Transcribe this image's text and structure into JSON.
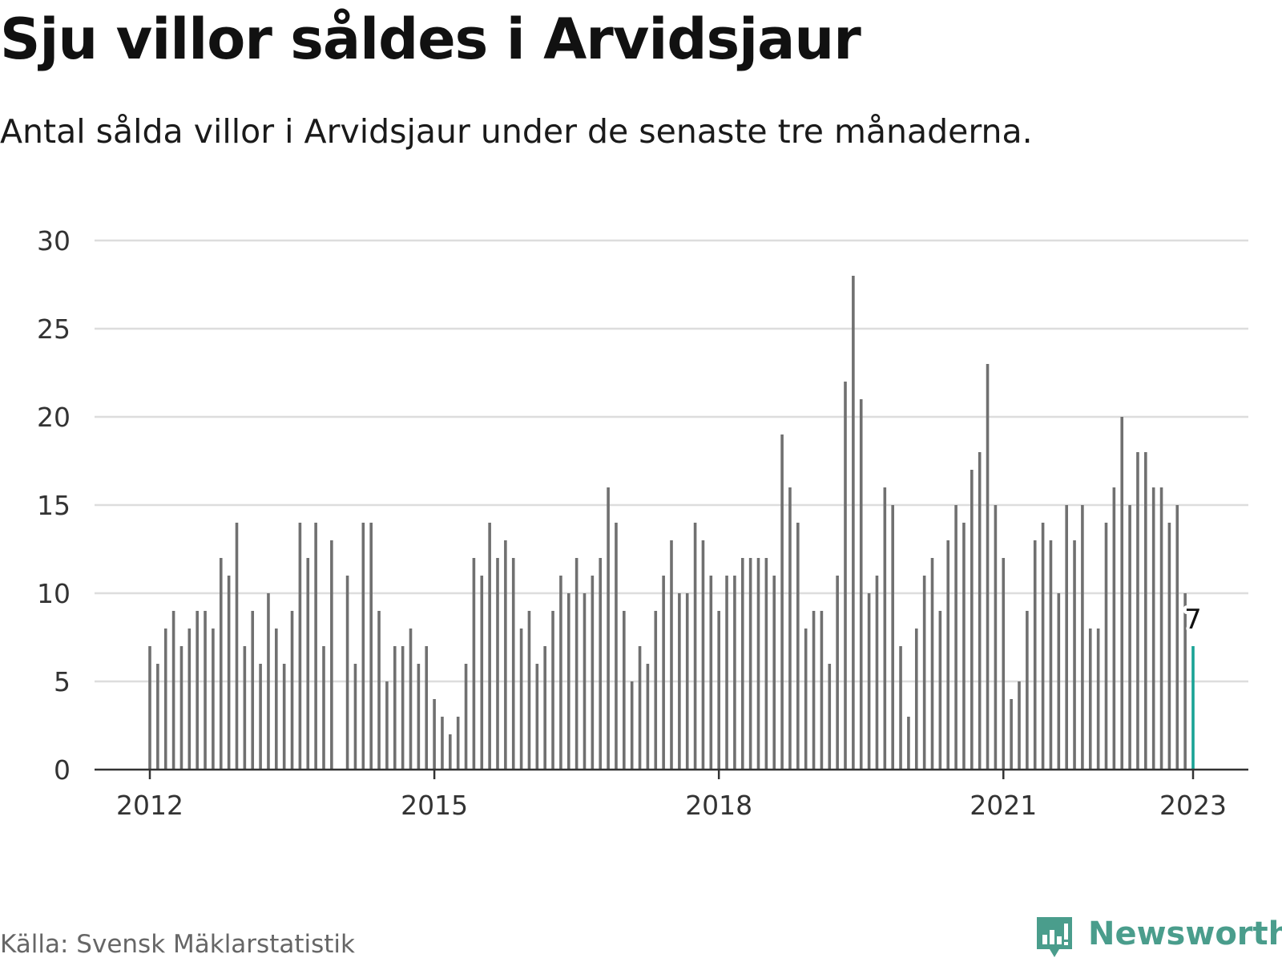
{
  "title": "Sju villor såldes i Arvidsjaur",
  "subtitle": "Antal sålda villor i Arvidsjaur under de senaste tre månaderna.",
  "source": "Källa: Svensk Mäklarstatistik",
  "brand": "Newsworthy",
  "colors": {
    "bar": "#707070",
    "highlight": "#1aa396",
    "grid": "#dddddd",
    "axis": "#333333",
    "brand": "#4a9d8c"
  },
  "chart_data": {
    "type": "bar",
    "title": "Sju villor såldes i Arvidsjaur",
    "xlabel": "",
    "ylabel": "",
    "ylim": [
      0,
      30
    ],
    "yticks": [
      0,
      5,
      10,
      15,
      20,
      25,
      30
    ],
    "grid": true,
    "start": "2012-01",
    "end": "2023-01",
    "x_tick_labels": [
      "2012",
      "2015",
      "2018",
      "2021",
      "2023"
    ],
    "x_tick_months": [
      0,
      36,
      72,
      108,
      132
    ],
    "highlight_label": "7",
    "values": [
      7,
      6,
      8,
      9,
      7,
      8,
      9,
      9,
      8,
      12,
      11,
      14,
      7,
      9,
      6,
      10,
      8,
      6,
      9,
      14,
      12,
      14,
      7,
      13,
      0,
      11,
      6,
      14,
      14,
      9,
      5,
      7,
      7,
      8,
      6,
      7,
      4,
      3,
      2,
      3,
      6,
      12,
      11,
      14,
      12,
      13,
      12,
      8,
      9,
      6,
      7,
      9,
      11,
      10,
      12,
      10,
      11,
      12,
      16,
      14,
      9,
      5,
      7,
      6,
      9,
      11,
      13,
      10,
      10,
      14,
      13,
      11,
      9,
      11,
      11,
      12,
      12,
      12,
      12,
      11,
      19,
      16,
      14,
      8,
      9,
      9,
      6,
      11,
      22,
      28,
      21,
      10,
      11,
      16,
      15,
      7,
      3,
      8,
      11,
      12,
      9,
      13,
      15,
      14,
      17,
      18,
      23,
      15,
      12,
      4,
      5,
      9,
      13,
      14,
      13,
      10,
      15,
      13,
      15,
      8,
      8,
      14,
      16,
      20,
      15,
      18,
      18,
      16,
      16,
      14,
      15,
      10,
      7
    ]
  }
}
